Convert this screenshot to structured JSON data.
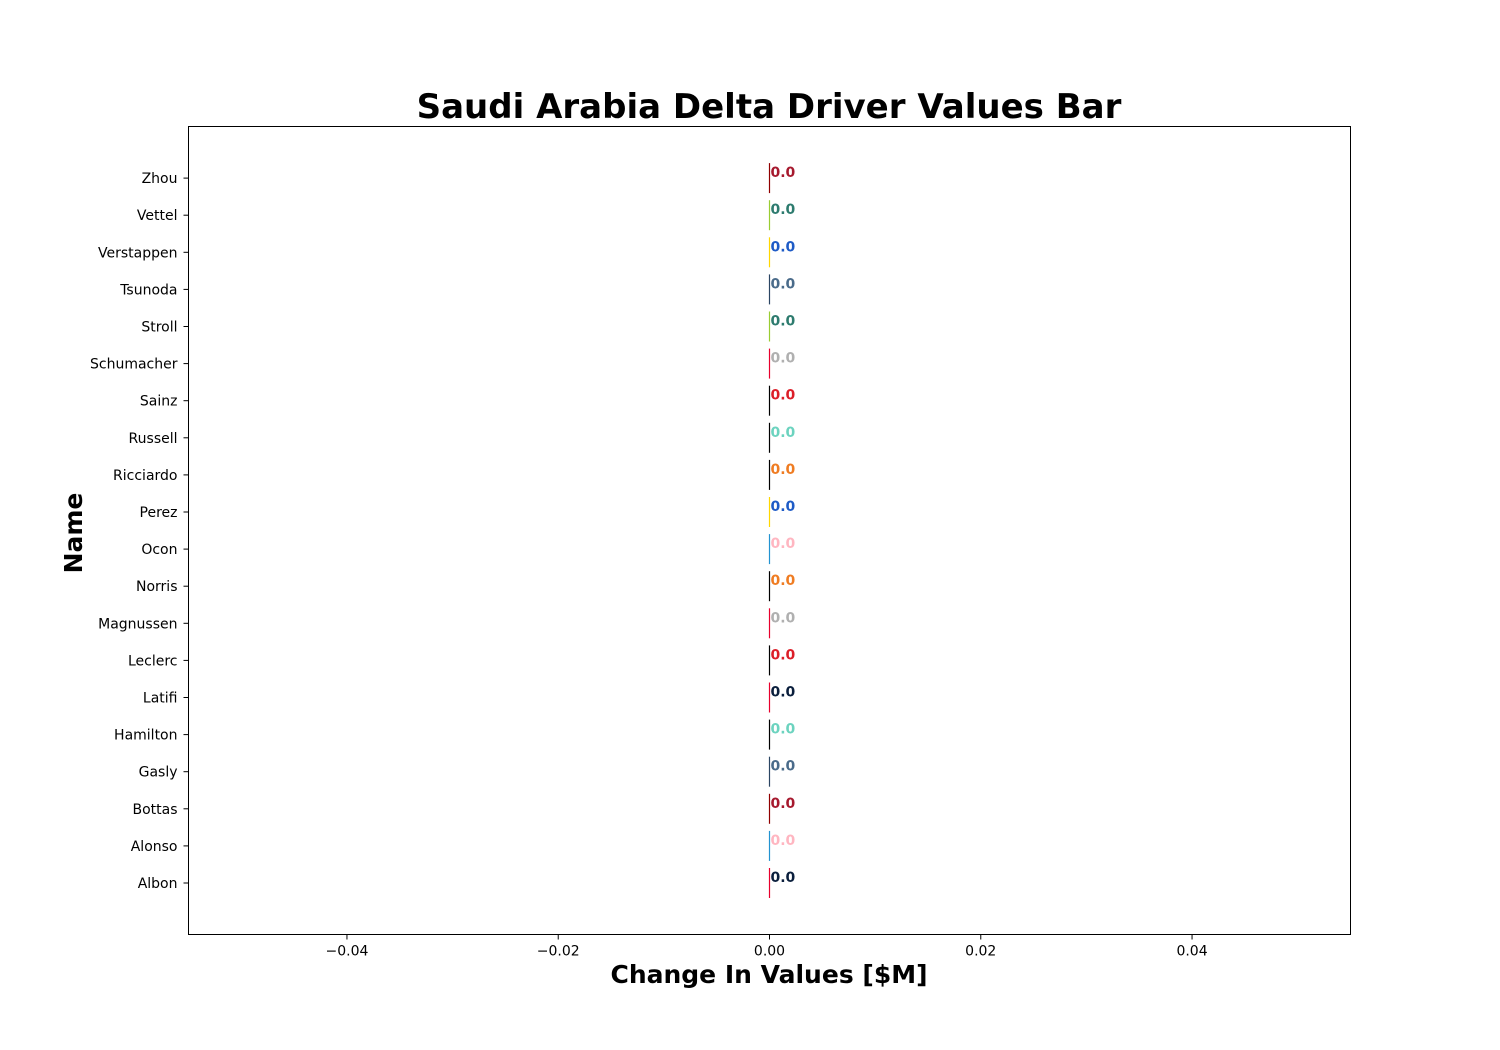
{
  "chart_data": {
    "type": "bar",
    "orientation": "horizontal",
    "title": "Saudi Arabia Delta Driver Values Bar",
    "xlabel": "Change In Values [$M]",
    "ylabel": "Name",
    "xlim": [
      -0.055,
      0.055
    ],
    "xticks": [
      -0.04,
      -0.02,
      0.0,
      0.02,
      0.04
    ],
    "xtick_labels": [
      "−0.04",
      "−0.02",
      "0.00",
      "0.02",
      "0.04"
    ],
    "grid": false,
    "categories": [
      "Albon",
      "Alonso",
      "Bottas",
      "Gasly",
      "Hamilton",
      "Latifi",
      "Leclerc",
      "Magnussen",
      "Norris",
      "Ocon",
      "Perez",
      "Ricciardo",
      "Russell",
      "Sainz",
      "Schumacher",
      "Stroll",
      "Tsunoda",
      "Verstappen",
      "Vettel",
      "Zhou"
    ],
    "values": [
      0.0,
      0.0,
      0.0,
      0.0,
      0.0,
      0.0,
      0.0,
      0.0,
      0.0,
      0.0,
      0.0,
      0.0,
      0.0,
      0.0,
      0.0,
      0.0,
      0.0,
      0.0,
      0.0,
      0.0
    ],
    "data_labels": [
      "0.0",
      "0.0",
      "0.0",
      "0.0",
      "0.0",
      "0.0",
      "0.0",
      "0.0",
      "0.0",
      "0.0",
      "0.0",
      "0.0",
      "0.0",
      "0.0",
      "0.0",
      "0.0",
      "0.0",
      "0.0",
      "0.0",
      "0.0"
    ],
    "bar_edge_colors": [
      "#e8002d",
      "#2293d1",
      "#900000",
      "#2b4562",
      "#000000",
      "#e8002d",
      "#000000",
      "#e8002d",
      "#000000",
      "#2293d1",
      "#ffd700",
      "#000000",
      "#000000",
      "#000000",
      "#e8002d",
      "#9acd32",
      "#2b4562",
      "#ffd700",
      "#9acd32",
      "#900000"
    ],
    "label_colors": [
      "#0a1e3c",
      "#ffb6c1",
      "#a6192e",
      "#4a6b8a",
      "#6cd3bf",
      "#0a1e3c",
      "#dc1e28",
      "#b0b0b0",
      "#ef7c22",
      "#ffb6c1",
      "#1e5bc6",
      "#ef7c22",
      "#6cd3bf",
      "#dc1e28",
      "#b0b0b0",
      "#2d7b6e",
      "#4a6b8a",
      "#1e5bc6",
      "#2d7b6e",
      "#a6192e"
    ]
  }
}
